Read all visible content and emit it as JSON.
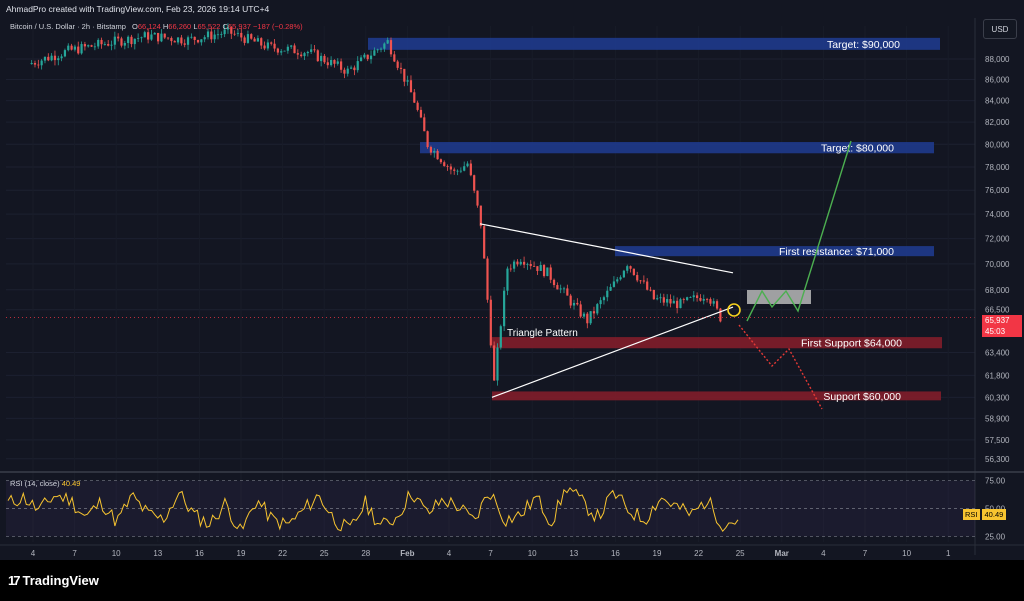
{
  "header": {
    "creator": "AhmadPro created with TradingView.com, Feb 23, 2026 19:14 UTC+4",
    "symbol": "Bitcoin / U.S. Dollar · 2h · Bitstamp",
    "ohlc": {
      "open_label": "O",
      "open": "66,124",
      "high_label": "H",
      "high": "66,260",
      "low_label": "L",
      "low": "65,522",
      "close_label": "C",
      "close": "65,937",
      "change": "−187 (−0.28%)"
    },
    "currency_button": "USD"
  },
  "price_tag": {
    "price": "65,937",
    "countdown": "45:03"
  },
  "rsi_panel": {
    "title": "RSI (14, close)",
    "value": "40.49",
    "tag_name": "RSI",
    "tag_value": "40.49",
    "levels": [
      75,
      50,
      25
    ],
    "level_labels": [
      "75.00",
      "50.00",
      "25.00"
    ]
  },
  "brand": {
    "mark": "17",
    "name": "TradingView"
  },
  "colors": {
    "background": "#000000",
    "up_candle": "#26a69a",
    "down_candle": "#ef5350",
    "target_zone": "#1e3a8a",
    "support_zone": "#7f1d2a",
    "rsi_line": "#f7c430",
    "projection_green": "#4caf50",
    "projection_red": "#e53935"
  },
  "chart_data": {
    "type": "candlestick",
    "title": "Bitcoin / U.S. Dollar · 2h · Bitstamp",
    "y_axis": {
      "ticks": [
        88000,
        86000,
        84000,
        82000,
        80000,
        78000,
        76000,
        74000,
        72000,
        70000,
        68000,
        66500,
        63400,
        61800,
        60300,
        58900,
        57500,
        56300
      ],
      "tick_labels": [
        "88,000",
        "86,000",
        "84,000",
        "82,000",
        "80,000",
        "78,000",
        "76,000",
        "74,000",
        "72,000",
        "70,000",
        "68,000",
        "66,500",
        "63,400",
        "61,800",
        "60,300",
        "58,900",
        "57,500",
        "56,300"
      ],
      "scale": "log"
    },
    "x_axis": {
      "tick_labels": [
        "4",
        "7",
        "10",
        "13",
        "16",
        "19",
        "22",
        "25",
        "28",
        "Feb",
        "4",
        "7",
        "10",
        "13",
        "16",
        "19",
        "22",
        "25",
        "Mar",
        "4",
        "7",
        "10",
        "1"
      ]
    },
    "price_path": [
      {
        "date": "2026-01-02",
        "price": 87500
      },
      {
        "date": "2026-01-05",
        "price": 88800
      },
      {
        "date": "2026-01-08",
        "price": 89600
      },
      {
        "date": "2026-01-11",
        "price": 90300
      },
      {
        "date": "2026-01-14",
        "price": 89900
      },
      {
        "date": "2026-01-17",
        "price": 90700
      },
      {
        "date": "2026-01-20",
        "price": 89200
      },
      {
        "date": "2026-01-23",
        "price": 88700
      },
      {
        "date": "2026-01-26",
        "price": 86800
      },
      {
        "date": "2026-01-29",
        "price": 89700
      },
      {
        "date": "2026-01-31",
        "price": 84000
      },
      {
        "date": "2026-02-01",
        "price": 80000
      },
      {
        "date": "2026-02-03",
        "price": 77500
      },
      {
        "date": "2026-02-04",
        "price": 78300
      },
      {
        "date": "2026-02-05",
        "price": 73200
      },
      {
        "date": "2026-02-06",
        "price": 61300
      },
      {
        "date": "2026-02-07",
        "price": 69700
      },
      {
        "date": "2026-02-08",
        "price": 70500
      },
      {
        "date": "2026-02-10",
        "price": 69300
      },
      {
        "date": "2026-02-12",
        "price": 66800
      },
      {
        "date": "2026-02-13",
        "price": 65700
      },
      {
        "date": "2026-02-15",
        "price": 68400
      },
      {
        "date": "2026-02-16",
        "price": 70100
      },
      {
        "date": "2026-02-18",
        "price": 67300
      },
      {
        "date": "2026-02-20",
        "price": 66900
      },
      {
        "date": "2026-02-22",
        "price": 67700
      },
      {
        "date": "2026-02-23",
        "price": 65937
      }
    ],
    "zones": [
      {
        "label": "Target: $90,000",
        "low": 88900,
        "high": 90100,
        "kind": "target"
      },
      {
        "label": "Target: $80,000",
        "low": 79200,
        "high": 80200,
        "kind": "target"
      },
      {
        "label": "First resistance: $71,000",
        "low": 70600,
        "high": 71400,
        "kind": "target"
      },
      {
        "label": "First Support $64,000",
        "low": 63700,
        "high": 64500,
        "kind": "support"
      },
      {
        "label": "Support $60,000",
        "low": 60100,
        "high": 60700,
        "kind": "support"
      }
    ],
    "annotations": [
      {
        "text": "Triangle Pattern"
      }
    ],
    "triangle": {
      "upper": [
        {
          "date": "2026-02-05",
          "price": 73200
        },
        {
          "date": "2026-02-23",
          "price": 69300
        }
      ],
      "lower": [
        {
          "date": "2026-02-06",
          "price": 60300
        },
        {
          "date": "2026-02-23",
          "price": 66700
        }
      ]
    },
    "bullish_projection": [
      {
        "date": "2026-02-24",
        "price": 66600
      },
      {
        "date": "2026-02-25",
        "price": 68000
      },
      {
        "date": "2026-02-26",
        "price": 67000
      },
      {
        "date": "2026-02-27",
        "price": 67900
      },
      {
        "date": "2026-02-28",
        "price": 66900
      },
      {
        "date": "2026-03-04",
        "price": 80000
      }
    ],
    "bearish_projection": [
      {
        "date": "2026-02-23",
        "price": 65700
      },
      {
        "date": "2026-02-24",
        "price": 64200
      },
      {
        "date": "2026-02-25",
        "price": 62600
      },
      {
        "date": "2026-02-26",
        "price": 63900
      },
      {
        "date": "2026-02-28",
        "price": 60400
      }
    ],
    "rsi": {
      "name": "RSI (14, close)",
      "last": 40.49,
      "path": [
        55,
        60,
        48,
        62,
        58,
        42,
        56,
        38,
        61,
        45,
        40,
        64,
        44,
        36,
        55,
        28,
        58,
        40,
        35,
        48,
        62,
        40,
        30,
        55,
        34,
        42,
        65,
        45,
        58,
        52,
        38,
        66,
        40,
        44,
        60,
        38,
        70,
        55,
        42,
        64,
        48,
        40,
        60,
        52,
        44,
        58,
        36,
        40
      ]
    }
  }
}
